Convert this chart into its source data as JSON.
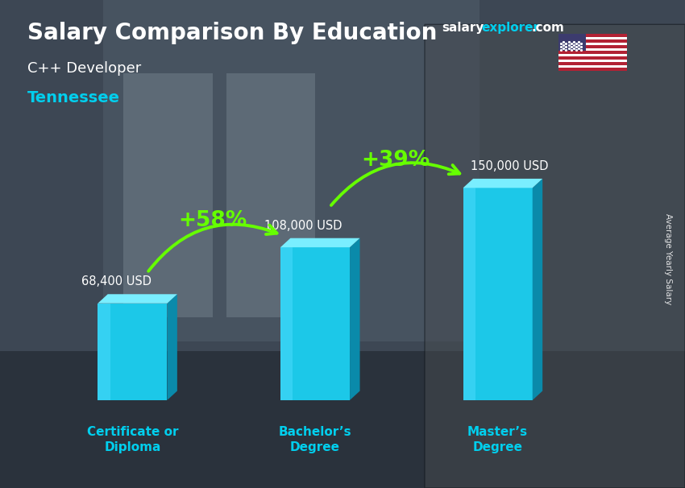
{
  "title_main": "Salary Comparison By Education",
  "subtitle1": "C++ Developer",
  "subtitle2": "Tennessee",
  "categories": [
    "Certificate or\nDiploma",
    "Bachelor’s\nDegree",
    "Master’s\nDegree"
  ],
  "values": [
    68400,
    108000,
    150000
  ],
  "value_labels": [
    "68,400 USD",
    "108,000 USD",
    "150,000 USD"
  ],
  "pct_labels": [
    "+58%",
    "+39%"
  ],
  "bar_face_color": "#1cc8e8",
  "bar_top_color": "#7aeeff",
  "bar_side_color": "#0a8aaa",
  "bar_left_color": "#0d9fc0",
  "ylabel_side": "Average Yearly Salary",
  "website_salary": "salary",
  "website_explorer": "explorer",
  "website_com": ".com",
  "bg_color": "#4a5a6a",
  "text_color_white": "#ffffff",
  "text_color_cyan": "#00d4f0",
  "text_color_green": "#66ff00",
  "arrow_color": "#66ff00",
  "cat_label_color": "#00cfee",
  "flag_blue": "#3C3B6E",
  "flag_red": "#B22234"
}
